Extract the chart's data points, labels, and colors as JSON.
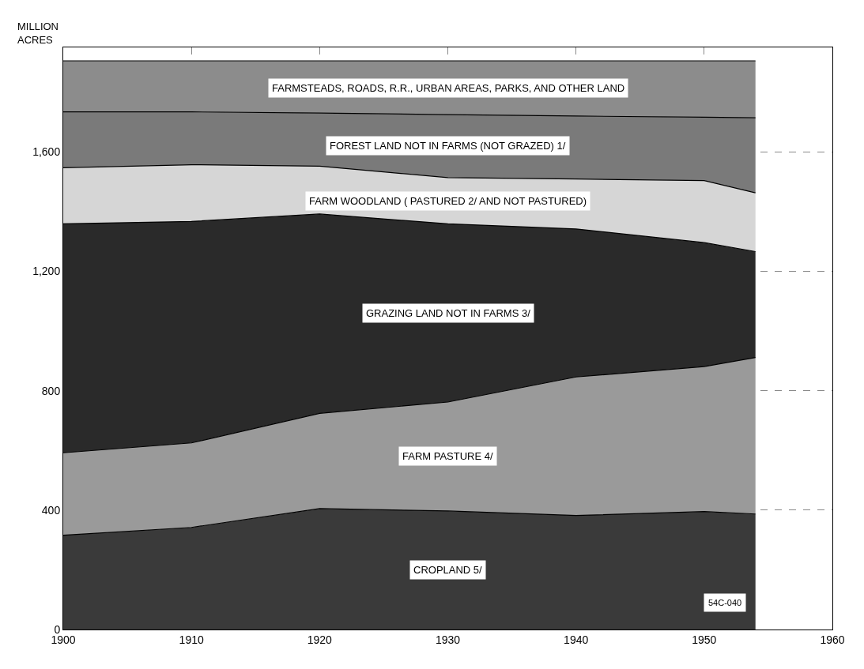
{
  "chart_data": {
    "type": "area",
    "stacked": true,
    "ylabel": "MILLION ACRES",
    "x": [
      1900,
      1910,
      1920,
      1930,
      1940,
      1950,
      1954
    ],
    "series": [
      {
        "name": "CROPLAND 5/",
        "color": "#3a3a3a",
        "values": [
          316,
          342,
          405,
          397,
          382,
          395,
          387
        ]
      },
      {
        "name": "FARM PASTURE 4/",
        "color": "#9a9a9a",
        "values": [
          276,
          283,
          319,
          365,
          464,
          486,
          524
        ]
      },
      {
        "name": "GRAZING LAND NOT IN FARMS 3/",
        "color": "#2a2a2a",
        "values": [
          767,
          742,
          668,
          597,
          496,
          415,
          355
        ]
      },
      {
        "name": "FARM WOODLAND ( PASTURED 2/ AND NOT PASTURED)",
        "color": "#d6d6d6",
        "values": [
          188,
          190,
          160,
          155,
          167,
          208,
          197
        ]
      },
      {
        "name": "FOREST LAND NOT IN FARMS (NOT GRAZED) 1/",
        "color": "#7a7a7a",
        "values": [
          187,
          177,
          178,
          211,
          211,
          212,
          251
        ]
      },
      {
        "name": "FARMSTEADS, ROADS, R.R., URBAN AREAS, PARKS, AND OTHER LAND",
        "color": "#8c8c8c",
        "values": [
          171,
          171,
          175,
          180,
          185,
          189,
          191
        ]
      }
    ],
    "xlim": [
      1900,
      1960
    ],
    "xticks": [
      1900,
      1910,
      1920,
      1930,
      1940,
      1950,
      1960
    ],
    "ylim": [
      0,
      1950
    ],
    "yticks": [
      0,
      400,
      800,
      {
        "value": 1200,
        "label": "1,200"
      },
      {
        "value": 1600,
        "label": "1,600"
      }
    ],
    "grid": true,
    "legend": false,
    "annotations": [
      "54C-040"
    ]
  }
}
